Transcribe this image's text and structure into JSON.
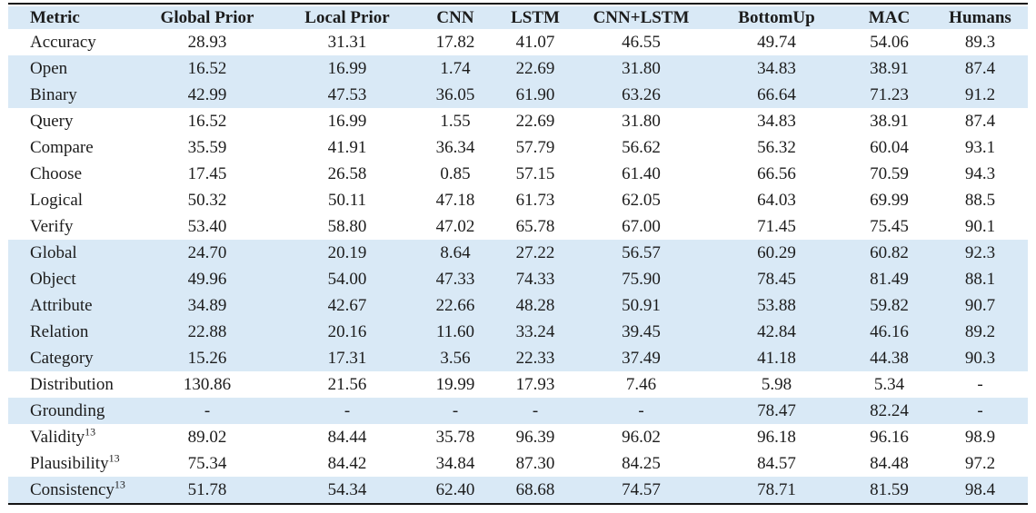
{
  "colors": {
    "row_band": "#d9e9f6",
    "rule": "#141414",
    "text": "#1c1c1c",
    "background": "#ffffff"
  },
  "table": {
    "columns": [
      "Metric",
      "Global Prior",
      "Local Prior",
      "CNN",
      "LSTM",
      "CNN+LSTM",
      "BottomUp",
      "MAC",
      "Humans"
    ],
    "rows": [
      {
        "metric": "Accuracy",
        "sup": "",
        "shaded": false,
        "values": [
          "28.93",
          "31.31",
          "17.82",
          "41.07",
          "46.55",
          "49.74",
          "54.06",
          "89.3"
        ]
      },
      {
        "metric": "Open",
        "sup": "",
        "shaded": true,
        "values": [
          "16.52",
          "16.99",
          "1.74",
          "22.69",
          "31.80",
          "34.83",
          "38.91",
          "87.4"
        ]
      },
      {
        "metric": "Binary",
        "sup": "",
        "shaded": true,
        "values": [
          "42.99",
          "47.53",
          "36.05",
          "61.90",
          "63.26",
          "66.64",
          "71.23",
          "91.2"
        ]
      },
      {
        "metric": "Query",
        "sup": "",
        "shaded": false,
        "values": [
          "16.52",
          "16.99",
          "1.55",
          "22.69",
          "31.80",
          "34.83",
          "38.91",
          "87.4"
        ]
      },
      {
        "metric": "Compare",
        "sup": "",
        "shaded": false,
        "values": [
          "35.59",
          "41.91",
          "36.34",
          "57.79",
          "56.62",
          "56.32",
          "60.04",
          "93.1"
        ]
      },
      {
        "metric": "Choose",
        "sup": "",
        "shaded": false,
        "values": [
          "17.45",
          "26.58",
          "0.85",
          "57.15",
          "61.40",
          "66.56",
          "70.59",
          "94.3"
        ]
      },
      {
        "metric": "Logical",
        "sup": "",
        "shaded": false,
        "values": [
          "50.32",
          "50.11",
          "47.18",
          "61.73",
          "62.05",
          "64.03",
          "69.99",
          "88.5"
        ]
      },
      {
        "metric": "Verify",
        "sup": "",
        "shaded": false,
        "values": [
          "53.40",
          "58.80",
          "47.02",
          "65.78",
          "67.00",
          "71.45",
          "75.45",
          "90.1"
        ]
      },
      {
        "metric": "Global",
        "sup": "",
        "shaded": true,
        "values": [
          "24.70",
          "20.19",
          "8.64",
          "27.22",
          "56.57",
          "60.29",
          "60.82",
          "92.3"
        ]
      },
      {
        "metric": "Object",
        "sup": "",
        "shaded": true,
        "values": [
          "49.96",
          "54.00",
          "47.33",
          "74.33",
          "75.90",
          "78.45",
          "81.49",
          "88.1"
        ]
      },
      {
        "metric": "Attribute",
        "sup": "",
        "shaded": true,
        "values": [
          "34.89",
          "42.67",
          "22.66",
          "48.28",
          "50.91",
          "53.88",
          "59.82",
          "90.7"
        ]
      },
      {
        "metric": "Relation",
        "sup": "",
        "shaded": true,
        "values": [
          "22.88",
          "20.16",
          "11.60",
          "33.24",
          "39.45",
          "42.84",
          "46.16",
          "89.2"
        ]
      },
      {
        "metric": "Category",
        "sup": "",
        "shaded": true,
        "values": [
          "15.26",
          "17.31",
          "3.56",
          "22.33",
          "37.49",
          "41.18",
          "44.38",
          "90.3"
        ]
      },
      {
        "metric": "Distribution",
        "sup": "",
        "shaded": false,
        "values": [
          "130.86",
          "21.56",
          "19.99",
          "17.93",
          "7.46",
          "5.98",
          "5.34",
          "-"
        ]
      },
      {
        "metric": "Grounding",
        "sup": "",
        "shaded": true,
        "values": [
          "-",
          "-",
          "-",
          "-",
          "-",
          "78.47",
          "82.24",
          "-"
        ]
      },
      {
        "metric": "Validity",
        "sup": "13",
        "shaded": false,
        "values": [
          "89.02",
          "84.44",
          "35.78",
          "96.39",
          "96.02",
          "96.18",
          "96.16",
          "98.9"
        ]
      },
      {
        "metric": "Plausibility",
        "sup": "13",
        "shaded": false,
        "values": [
          "75.34",
          "84.42",
          "34.84",
          "87.30",
          "84.25",
          "84.57",
          "84.48",
          "97.2"
        ]
      },
      {
        "metric": "Consistency",
        "sup": "13",
        "shaded": true,
        "values": [
          "51.78",
          "54.34",
          "62.40",
          "68.68",
          "74.57",
          "78.71",
          "81.59",
          "98.4"
        ]
      }
    ]
  }
}
